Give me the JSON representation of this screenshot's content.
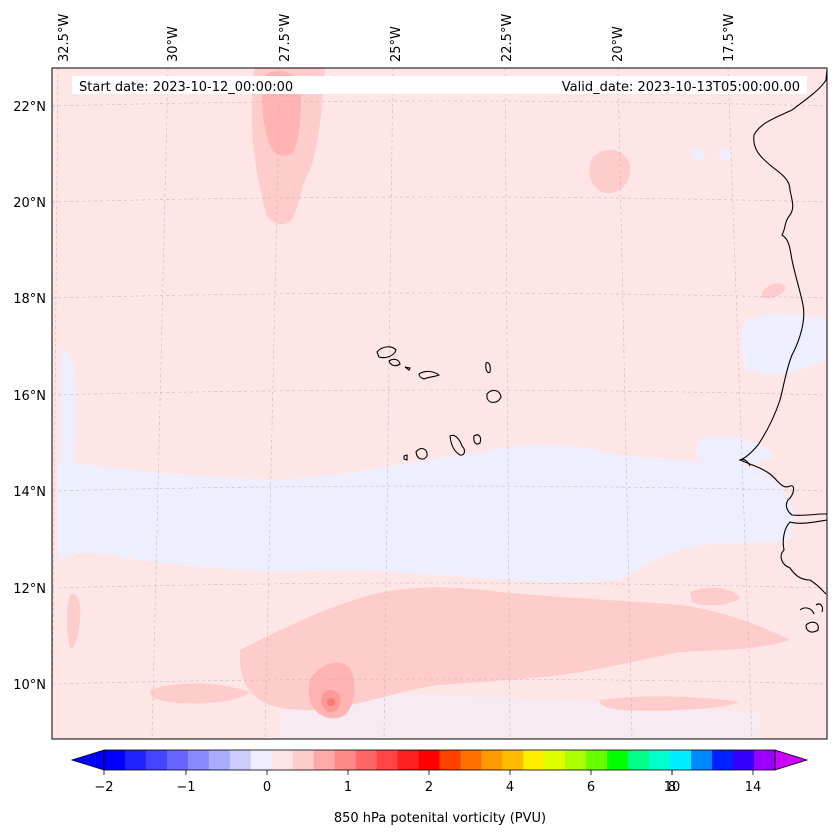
{
  "map": {
    "start_date": "Start date: 2023-10-12_00:00:00",
    "valid_date": "Valid_date: 2023-10-13T05:00:00.00",
    "top_ticks": [
      "32.5°W",
      "30°W",
      "27.5°W",
      "25°W",
      "22.5°W",
      "20°W",
      "17.5°W"
    ],
    "left_ticks": [
      "22°N",
      "20°N",
      "18°N",
      "16°N",
      "14°N",
      "12°N",
      "10°N"
    ],
    "colors": {
      "background_field": "#ffe6e6",
      "light_pink": "#ffcccc",
      "pink": "#ffb3b3",
      "lavender": "#eeeeff",
      "coast": "#000000",
      "grid": "#bbbbbb"
    }
  },
  "colorbar": {
    "label": "850 hPa potenital vorticity (PVU)",
    "tick_labels": [
      "−2",
      "−1",
      "0",
      "1",
      "2",
      "4",
      "6",
      "8",
      "10",
      "14"
    ],
    "colors": [
      "#0000ff",
      "#2222ff",
      "#4444ff",
      "#6666ff",
      "#8888ff",
      "#aaaaff",
      "#ccccff",
      "#eeeeff",
      "#ffe6e6",
      "#ffcccc",
      "#ffaaaa",
      "#ff8888",
      "#ff6666",
      "#ff4444",
      "#ff2222",
      "#ff0000",
      "#ff4000",
      "#ff7000",
      "#ff9900",
      "#ffbb00",
      "#ffee00",
      "#ddff00",
      "#aaff00",
      "#66ff00",
      "#00ff00",
      "#00ff88",
      "#00ffcc",
      "#00eeff",
      "#0088ff",
      "#0022ff",
      "#3300ff",
      "#9900ff"
    ]
  }
}
